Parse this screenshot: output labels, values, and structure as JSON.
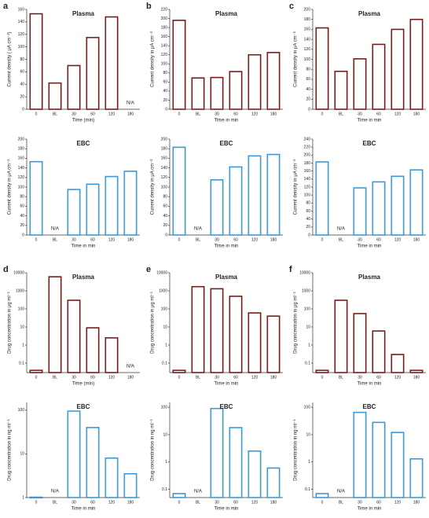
{
  "chart_data": [
    {
      "panel": "a",
      "type": "bar",
      "title": "Plasma",
      "categories": [
        "0",
        "BL",
        "30",
        "60",
        "120",
        "180"
      ],
      "values": [
        153,
        42,
        70,
        115,
        148,
        null
      ],
      "annotation": "N/A",
      "ylim": [
        0,
        160
      ],
      "yticks": [
        0,
        20,
        40,
        60,
        80,
        100,
        120,
        140,
        160
      ],
      "log": false,
      "color": "#7a1c1c",
      "xlabel": "Time (min)",
      "ylabel": "Current density ( μA cm⁻²)"
    },
    {
      "panel": "b",
      "type": "bar",
      "title": "Plasma",
      "categories": [
        "0",
        "BL",
        "30",
        "60",
        "120",
        "180"
      ],
      "values": [
        196,
        69,
        70,
        83,
        120,
        125
      ],
      "ylim": [
        0,
        220
      ],
      "yticks": [
        0,
        20,
        40,
        60,
        80,
        100,
        120,
        140,
        160,
        180,
        200,
        220
      ],
      "log": false,
      "color": "#7a1c1c",
      "xlabel": "Time in min",
      "ylabel": "Current density in μA cm⁻²"
    },
    {
      "panel": "c",
      "type": "bar",
      "title": "Plasma",
      "categories": [
        "0",
        "BL",
        "30",
        "60",
        "120",
        "180"
      ],
      "values": [
        163,
        76,
        101,
        130,
        160,
        180
      ],
      "ylim": [
        0,
        200
      ],
      "yticks": [
        0,
        20,
        40,
        60,
        80,
        100,
        120,
        140,
        160,
        180,
        200
      ],
      "log": false,
      "color": "#7a1c1c",
      "xlabel": "Time in min",
      "ylabel": "Current density in μA cm⁻²"
    },
    {
      "type": "bar",
      "title": "EBC",
      "categories": [
        "0",
        "BL",
        "30",
        "60",
        "120",
        "180"
      ],
      "values": [
        153,
        null,
        95,
        106,
        122,
        133
      ],
      "annotation": "N/A",
      "ylim": [
        0,
        200
      ],
      "yticks": [
        0,
        20,
        40,
        60,
        80,
        100,
        120,
        140,
        160,
        180,
        200
      ],
      "log": false,
      "color": "#3a9ad9",
      "xlabel": "Time in min",
      "ylabel": "Current density in μA cm⁻²"
    },
    {
      "type": "bar",
      "title": "EBC",
      "categories": [
        "0",
        "BL",
        "30",
        "60",
        "120",
        "180"
      ],
      "values": [
        183,
        null,
        115,
        142,
        165,
        168
      ],
      "annotation": "N/A",
      "ylim": [
        0,
        200
      ],
      "yticks": [
        0,
        20,
        40,
        60,
        80,
        100,
        120,
        140,
        160,
        180,
        200
      ],
      "log": false,
      "color": "#3a9ad9",
      "xlabel": "Time in min",
      "ylabel": "Current density in μA cm⁻²"
    },
    {
      "type": "bar",
      "title": "EBC",
      "categories": [
        "0",
        "BL",
        "30",
        "60",
        "120",
        "180"
      ],
      "values": [
        183,
        null,
        118,
        133,
        147,
        163
      ],
      "annotation": "N/A",
      "ylim": [
        0,
        240
      ],
      "yticks": [
        0,
        20,
        40,
        60,
        80,
        100,
        120,
        140,
        160,
        180,
        200,
        220,
        240
      ],
      "log": false,
      "color": "#3a9ad9",
      "xlabel": "Time in min",
      "ylabel": "Current density in μA cm⁻²"
    },
    {
      "panel": "d",
      "type": "bar",
      "title": "Plasma",
      "categories": [
        "0",
        "BL",
        "30",
        "60",
        "120",
        "180"
      ],
      "values": [
        0.04,
        6000,
        300,
        9,
        2.5,
        null
      ],
      "annotation": "N/A",
      "ylim": [
        0.03,
        10000
      ],
      "yticks": [
        0.1,
        1,
        10,
        100,
        1000,
        10000
      ],
      "log": true,
      "color": "#7a1c1c",
      "xlabel": "Time (min)",
      "ylabel": "Drug concentration in μg ml⁻¹"
    },
    {
      "panel": "e",
      "type": "bar",
      "title": "Plasma",
      "categories": [
        "0",
        "BL",
        "30",
        "60",
        "120",
        "180"
      ],
      "values": [
        0.04,
        1700,
        1300,
        500,
        60,
        40
      ],
      "ylim": [
        0.03,
        10000
      ],
      "yticks": [
        0.1,
        1,
        10,
        100,
        1000,
        10000
      ],
      "log": true,
      "color": "#7a1c1c",
      "xlabel": "Time in min",
      "ylabel": "Drug concentration in μg ml⁻¹"
    },
    {
      "panel": "f",
      "type": "bar",
      "title": "Plasma",
      "categories": [
        "0",
        "BL",
        "30",
        "60",
        "120",
        "180"
      ],
      "values": [
        0.04,
        300,
        55,
        6,
        0.3,
        0.04
      ],
      "ylim": [
        0.03,
        10000
      ],
      "yticks": [
        0.1,
        1,
        10,
        100,
        1000,
        10000
      ],
      "log": true,
      "color": "#7a1c1c",
      "xlabel": "Time in min",
      "ylabel": "Drug concentration in μg ml⁻¹"
    },
    {
      "type": "bar",
      "title": "EBC",
      "categories": [
        "0",
        "BL",
        "30",
        "60",
        "120",
        "180"
      ],
      "values": [
        1.02,
        null,
        95,
        40,
        8,
        3.5
      ],
      "annotation": "N/A",
      "ylim": [
        1,
        150
      ],
      "yticks": [
        1,
        10,
        100
      ],
      "log": true,
      "color": "#3a9ad9",
      "xlabel": "Time in min",
      "ylabel": "Drug concentration in ng ml⁻¹"
    },
    {
      "type": "bar",
      "title": "EBC",
      "categories": [
        "0",
        "BL",
        "30",
        "60",
        "120",
        "180"
      ],
      "values": [
        0.07,
        null,
        90,
        18,
        2.5,
        0.6
      ],
      "annotation": "N/A",
      "ylim": [
        0.05,
        150
      ],
      "yticks": [
        0.1,
        1,
        10,
        100
      ],
      "log": true,
      "color": "#3a9ad9",
      "xlabel": "Time in min",
      "ylabel": "Drug concentration in ng ml⁻¹"
    },
    {
      "type": "bar",
      "title": "EBC",
      "categories": [
        "0",
        "BL",
        "30",
        "60",
        "120",
        "180"
      ],
      "values": [
        0.07,
        null,
        65,
        28,
        12,
        1.3
      ],
      "annotation": "N/A",
      "ylim": [
        0.05,
        150
      ],
      "yticks": [
        0.1,
        1,
        10,
        100
      ],
      "log": true,
      "color": "#3a9ad9",
      "xlabel": "Time in min",
      "ylabel": "Drug concentration in ng ml⁻¹"
    }
  ]
}
